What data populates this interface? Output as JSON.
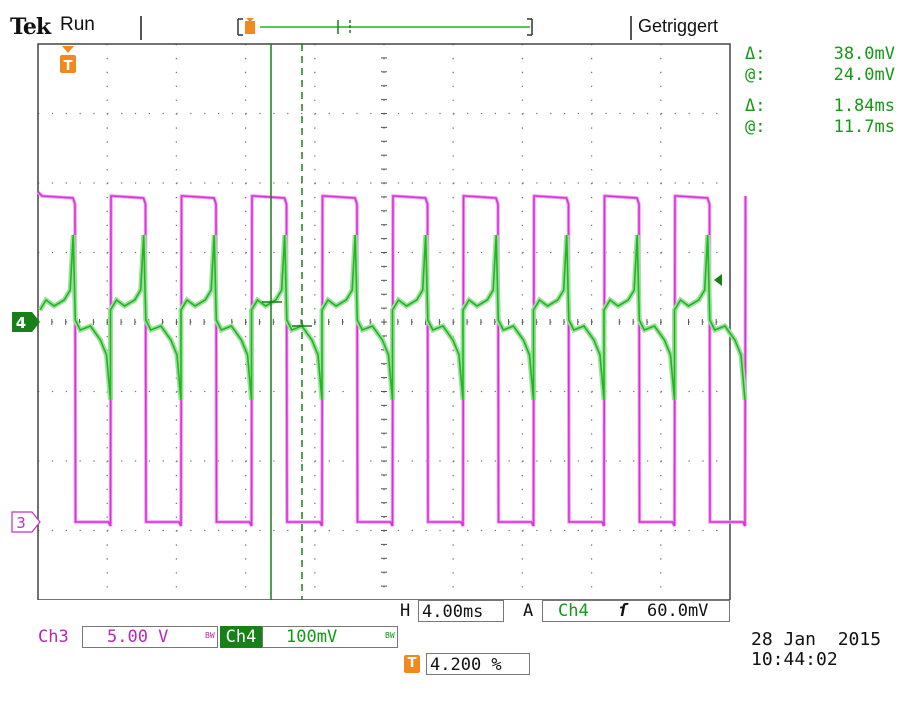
{
  "header": {
    "brand": "Tek",
    "run_state": "Run",
    "trigger_state": "Getriggert",
    "trigger_marker_label": "T"
  },
  "cursors": {
    "amplitude": {
      "delta_label": "Δ:",
      "delta_value": "38.0mV",
      "at_label": "@:",
      "at_value": "24.0mV"
    },
    "time": {
      "delta_label": "Δ:",
      "delta_value": "1.84ms",
      "at_label": "@:",
      "at_value": "11.7ms"
    }
  },
  "channel_markers": {
    "ch4": "4",
    "ch3": "3"
  },
  "settings": {
    "ch3_name": "Ch3",
    "ch3_scale": "5.00 V",
    "ch3_bw": "BW",
    "ch4_name": "Ch4",
    "ch4_scale": "100mV",
    "ch4_bw": "BW",
    "horizontal_label": "H",
    "horizontal_scale": "4.00ms",
    "trigger_mode": "A",
    "trigger_source": "Ch4",
    "trigger_slope": "ſ",
    "trigger_level": "60.0mV",
    "trigger_position_label": "T",
    "trigger_position": "4.200 %"
  },
  "timestamp": {
    "date": "28 Jan  2015",
    "time": "10:44:02"
  },
  "colors": {
    "ch3": "#d633d6",
    "ch3_light": "#f0a0f0",
    "ch4": "#22b522",
    "ch4_dark": "#178017",
    "trigger": "#f08a1e",
    "graticule": "#444444"
  }
}
